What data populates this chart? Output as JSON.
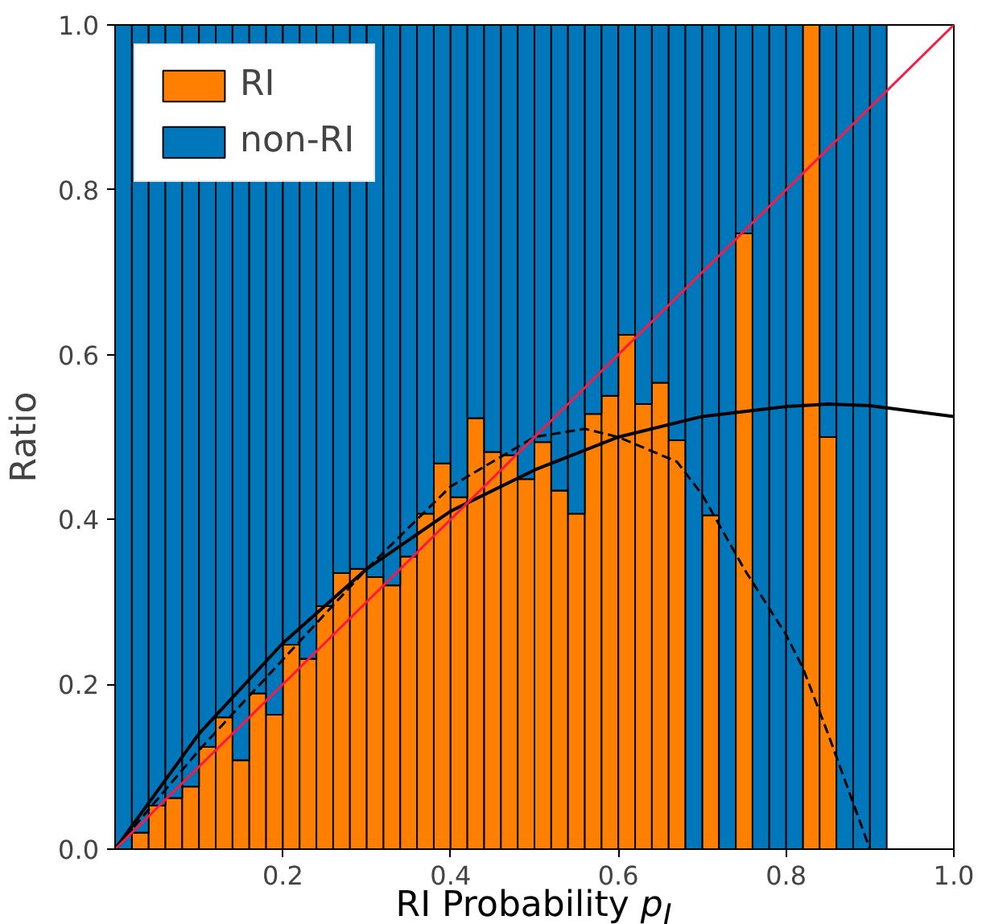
{
  "chart_data": {
    "type": "bar",
    "stacked": true,
    "xlabel": "RI Probability p$_{I}$",
    "ylabel": "Ratio",
    "x": [
      0.01,
      0.03,
      0.05,
      0.07,
      0.09,
      0.11,
      0.13,
      0.15,
      0.17,
      0.19,
      0.21,
      0.23,
      0.25,
      0.27,
      0.29,
      0.31,
      0.33,
      0.35,
      0.37,
      0.39,
      0.41,
      0.43,
      0.45,
      0.47,
      0.49,
      0.51,
      0.53,
      0.55,
      0.57,
      0.59,
      0.61,
      0.63,
      0.65,
      0.67,
      0.69,
      0.71,
      0.73,
      0.75,
      0.77,
      0.79,
      0.81,
      0.83,
      0.85,
      0.87,
      0.89,
      0.91
    ],
    "series": [
      {
        "name": "RI",
        "color": "#ff7f00",
        "values": [
          null,
          0.02,
          0.053,
          0.062,
          0.076,
          0.124,
          0.16,
          0.108,
          0.189,
          0.163,
          0.248,
          0.231,
          0.295,
          0.335,
          0.34,
          0.33,
          0.32,
          0.355,
          0.407,
          0.468,
          0.427,
          0.523,
          0.482,
          0.478,
          0.449,
          0.494,
          0.435,
          0.407,
          0.528,
          0.55,
          0.624,
          0.54,
          0.566,
          0.496,
          0,
          0.405,
          0,
          0.747,
          0,
          0,
          0,
          1.0,
          0.5,
          0,
          0,
          0
        ]
      },
      {
        "name": "non-RI",
        "color": "#0077bb",
        "values": [
          1.0,
          0.98,
          0.947,
          0.938,
          0.924,
          0.876,
          0.84,
          0.892,
          0.811,
          0.837,
          0.752,
          0.769,
          0.705,
          0.665,
          0.66,
          0.67,
          0.68,
          0.645,
          0.593,
          0.532,
          0.573,
          0.477,
          0.518,
          0.522,
          0.551,
          0.506,
          0.565,
          0.593,
          0.472,
          0.45,
          0.376,
          0.46,
          0.434,
          0.504,
          1.0,
          0.595,
          1.0,
          0.253,
          1.0,
          1.0,
          1.0,
          0,
          0.5,
          1.0,
          1.0,
          1.0
        ]
      },
      {
        "type": "line",
        "color": "#000000",
        "line_style": "solid",
        "x": [
          0,
          0.1,
          0.2,
          0.3,
          0.4,
          0.5,
          0.6,
          0.7,
          0.8,
          0.85,
          0.9,
          1.0
        ],
        "values": [
          0,
          0.14,
          0.25,
          0.34,
          0.41,
          0.46,
          0.5,
          0.525,
          0.537,
          0.54,
          0.538,
          0.525
        ]
      },
      {
        "type": "line",
        "color": "#000000",
        "line_style": "dashed",
        "x": [
          0,
          0.1,
          0.2,
          0.3,
          0.4,
          0.5,
          0.56,
          0.6,
          0.67,
          0.7,
          0.75,
          0.8,
          0.82,
          0.85,
          0.9
        ],
        "values": [
          0,
          0.12,
          0.23,
          0.34,
          0.44,
          0.5,
          0.51,
          0.5,
          0.47,
          0.43,
          0.34,
          0.26,
          0.22,
          0.14,
          0
        ]
      },
      {
        "type": "line",
        "color": "#ff1744",
        "line_style": "solid",
        "x": [
          0,
          1
        ],
        "values": [
          0,
          1
        ]
      }
    ],
    "xlim": [
      0,
      1
    ],
    "ylim": [
      0,
      1
    ],
    "xticks": [
      0.2,
      0.4,
      0.6,
      0.8,
      {
        "value": 1,
        "label": "1.0"
      }
    ],
    "yticks": [
      {
        "value": 0,
        "label": "0.0"
      },
      0.2,
      0.4,
      0.6,
      0.8,
      {
        "value": 1,
        "label": "1.0"
      }
    ],
    "grid": false,
    "legend": "top left"
  }
}
